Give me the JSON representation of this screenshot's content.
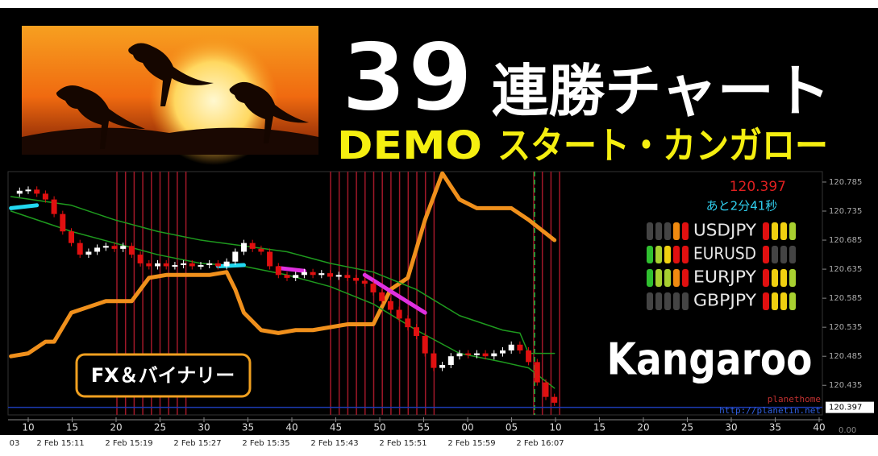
{
  "banner": {
    "number": "39",
    "headline": "連勝チャート",
    "demo": "DEMO",
    "subtitle": "スタート・カンガロー",
    "badge": "FX＆バイナリー",
    "brand": "Kangaroo"
  },
  "chart": {
    "type": "candlestick",
    "ylim": [
      120.384,
      120.803
    ],
    "yticks": [
      120.785,
      120.735,
      120.685,
      120.635,
      120.585,
      120.535,
      120.485,
      120.435
    ],
    "last_price": 120.397,
    "last_price_label": "120.397",
    "countdown": "あと2分41秒",
    "closes": [
      120.765,
      120.77,
      120.772,
      120.765,
      120.755,
      120.73,
      120.7,
      120.68,
      120.66,
      120.665,
      120.672,
      120.675,
      120.67,
      120.675,
      120.66,
      120.645,
      120.64,
      120.645,
      120.64,
      120.642,
      120.645,
      120.64,
      120.642,
      120.645,
      120.64,
      120.648,
      120.665,
      120.68,
      120.67,
      120.665,
      120.64,
      120.625,
      120.62,
      120.625,
      120.63,
      120.625,
      120.628,
      120.622,
      120.625,
      120.62,
      120.615,
      120.61,
      120.595,
      120.58,
      120.565,
      120.55,
      120.535,
      120.52,
      120.49,
      120.465,
      120.47,
      120.485,
      120.49,
      120.487,
      120.49,
      120.485,
      120.49,
      120.495,
      120.505,
      120.495,
      120.475,
      120.44,
      120.415,
      120.405
    ],
    "up_color": "#ffffff",
    "down_color": "#e01010",
    "lines": [
      {
        "color": "#f0901c",
        "width": 5,
        "x": [
          0,
          2,
          4,
          5,
          7,
          9,
          11,
          14,
          16,
          18,
          23,
          25,
          26,
          27,
          29,
          31,
          33,
          35,
          39,
          42,
          44,
          46,
          48,
          50,
          52,
          54,
          58,
          60,
          63
        ],
        "values": [
          120.485,
          120.49,
          120.51,
          120.51,
          120.56,
          120.57,
          120.58,
          120.58,
          120.62,
          120.625,
          120.625,
          120.63,
          120.6,
          120.56,
          120.53,
          120.525,
          120.53,
          120.53,
          120.54,
          120.54,
          120.6,
          120.62,
          120.72,
          120.8,
          120.755,
          120.74,
          120.74,
          120.72,
          120.685
        ]
      },
      {
        "color": "#1e9a1e",
        "width": 1.5,
        "x": [
          0,
          7,
          12,
          17,
          22,
          27,
          32,
          37,
          42,
          47,
          52,
          57,
          59,
          60,
          63
        ],
        "values": [
          120.76,
          120.745,
          120.72,
          120.7,
          120.685,
          120.675,
          120.665,
          120.645,
          120.63,
          120.6,
          120.555,
          120.53,
          120.525,
          120.49,
          120.49
        ]
      },
      {
        "color": "#1e9a1e",
        "width": 1.5,
        "x": [
          0,
          7,
          12,
          17,
          22,
          27,
          32,
          37,
          42,
          47,
          52,
          57,
          60,
          63
        ],
        "values": [
          120.735,
          120.7,
          120.68,
          120.66,
          120.645,
          120.64,
          120.625,
          120.605,
          120.575,
          120.53,
          120.49,
          120.475,
          120.465,
          120.43
        ]
      },
      {
        "color": "#22d8f0",
        "width": 5,
        "x": [
          0,
          3
        ],
        "values": [
          120.74,
          120.745
        ]
      },
      {
        "color": "#22d8f0",
        "width": 5,
        "x": [
          24,
          27
        ],
        "values": [
          120.64,
          120.642
        ]
      },
      {
        "color": "#e030e0",
        "width": 5,
        "x": [
          31,
          34
        ],
        "values": [
          120.637,
          120.632
        ]
      },
      {
        "color": "#e030e0",
        "width": 5,
        "x": [
          41,
          48
        ],
        "values": [
          120.625,
          120.56
        ]
      }
    ],
    "minute_labels": [
      "10",
      "15",
      "20",
      "25",
      "30",
      "35",
      "40",
      "45",
      "50",
      "55",
      "00",
      "05",
      "10",
      "15",
      "20",
      "25",
      "30",
      "35",
      "40"
    ],
    "time_labels": [
      "03",
      "2 Feb 15:11",
      "2 Feb 15:19",
      "2 Feb 15:27",
      "2 Feb 15:35",
      "2 Feb 15:43",
      "2 Feb 15:51",
      "2 Feb 15:59",
      "2 Feb 16:07"
    ],
    "corner_label": "0.00",
    "site_name": "planethome",
    "site_url": "http://planetin.net"
  },
  "signals": [
    {
      "pair": "USDJPY",
      "left": [
        "#444",
        "#444",
        "#444",
        "#f08a10",
        "#e01010"
      ],
      "right": [
        "#e01010",
        "#f0d010",
        "#f0d010",
        "#a8d030"
      ]
    },
    {
      "pair": "EURUSD",
      "left": [
        "#30c030",
        "#a8d030",
        "#f0d010",
        "#e01010",
        "#e01010"
      ],
      "right": [
        "#e01010",
        "#444",
        "#444",
        "#444"
      ]
    },
    {
      "pair": "EURJPY",
      "left": [
        "#30c030",
        "#a8d030",
        "#a8d030",
        "#f08a10",
        "#e01010"
      ],
      "right": [
        "#e01010",
        "#f0d010",
        "#f0d010",
        "#a8d030"
      ]
    },
    {
      "pair": "GBPJPY",
      "left": [
        "#444",
        "#444",
        "#444",
        "#444",
        "#444"
      ],
      "right": [
        "#e01010",
        "#f0d010",
        "#f0d010",
        "#a8d030"
      ]
    }
  ]
}
